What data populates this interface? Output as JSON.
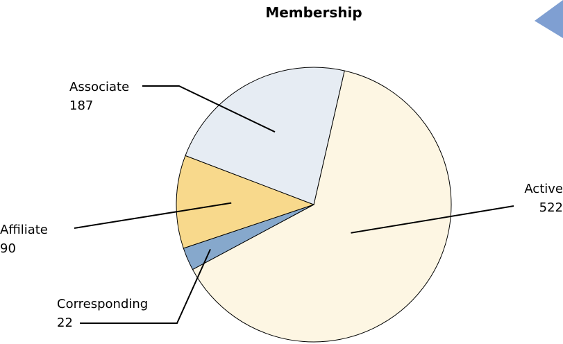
{
  "chart_data": {
    "type": "pie",
    "title": "Membership",
    "slices": [
      {
        "label": "Active",
        "value": 522,
        "color": "#fdf6e3"
      },
      {
        "label": "Corresponding",
        "value": 22,
        "color": "#86a8cc"
      },
      {
        "label": "Affiliate",
        "value": 90,
        "color": "#f8d98c"
      },
      {
        "label": "Associate",
        "value": 187,
        "color": "#e6ecf3"
      }
    ],
    "legend": "none",
    "decoration_color": "#7f9fd2"
  }
}
